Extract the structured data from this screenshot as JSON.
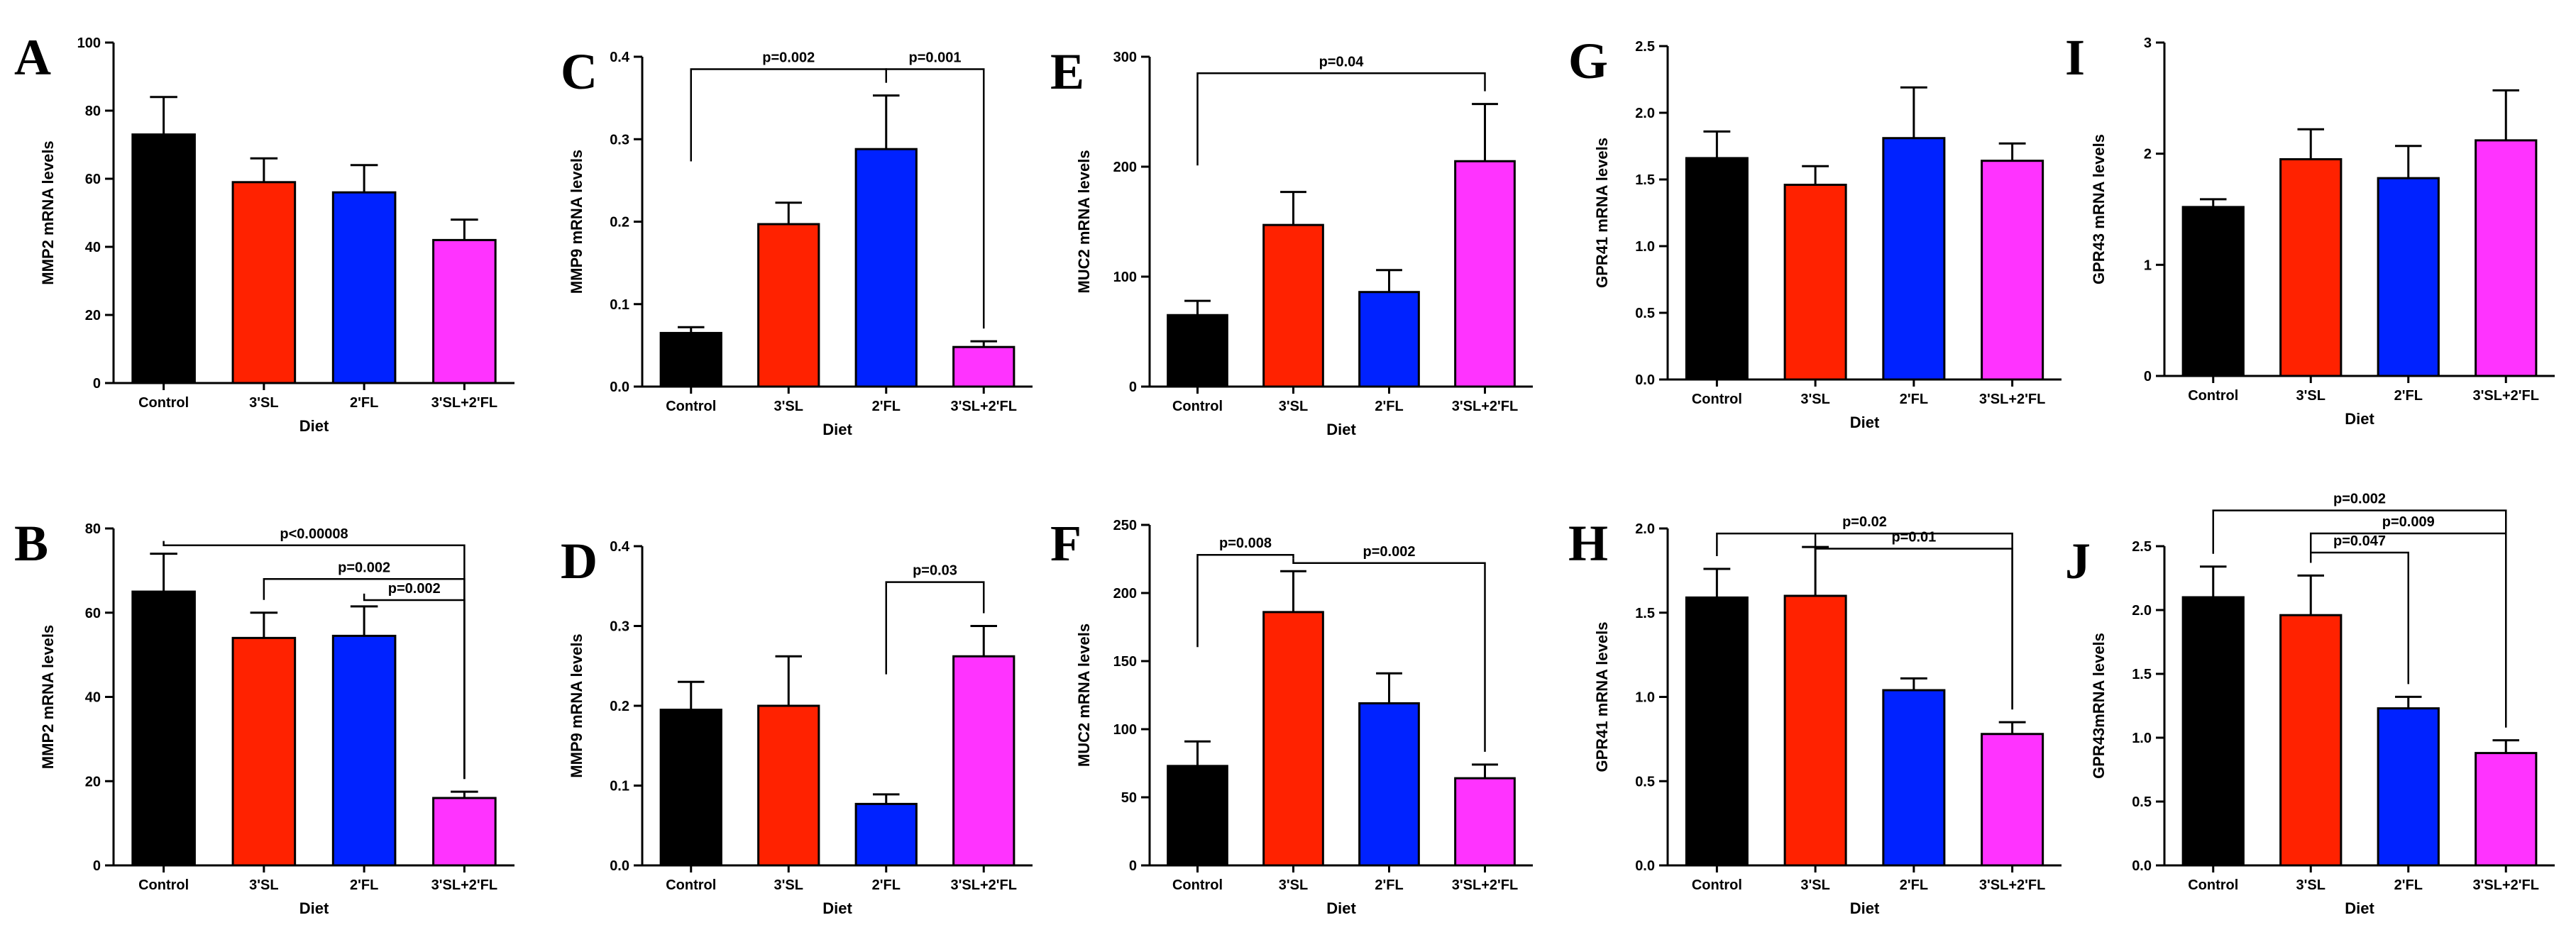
{
  "chart_data": [
    {
      "id": "A",
      "type": "bar",
      "title": "",
      "categories": [
        "Control",
        "3'SL",
        "2'FL",
        "3'SL+2'FL"
      ],
      "values": [
        73,
        59,
        56,
        42
      ],
      "errors": [
        11,
        7,
        8,
        6
      ],
      "colors": [
        "#000000",
        "#ff2200",
        "#0022ff",
        "#ff33ff"
      ],
      "ylabel": "MMP2 mRNA levels",
      "xlabel": "Diet",
      "ylim": [
        0,
        100
      ],
      "yticks": [
        "0",
        "20",
        "40",
        "60",
        "80",
        "100"
      ],
      "brackets": []
    },
    {
      "id": "B",
      "type": "bar",
      "title": "",
      "categories": [
        "Control",
        "3'SL",
        "2'FL",
        "3'SL+2'FL"
      ],
      "values": [
        65,
        54,
        54.5,
        16
      ],
      "errors": [
        9,
        6,
        7,
        1.5
      ],
      "colors": [
        "#000000",
        "#ff2200",
        "#0022ff",
        "#ff33ff"
      ],
      "ylabel": "MMP2 mRNA levels",
      "xlabel": "Diet",
      "ylim": [
        0,
        80
      ],
      "yticks": [
        "0",
        "20",
        "40",
        "60",
        "80"
      ],
      "brackets": [
        {
          "from": 0,
          "to": 3,
          "level": 76,
          "label": "p<0.00008"
        },
        {
          "from": 1,
          "to": 3,
          "level": 68,
          "label": "p=0.002"
        },
        {
          "from": 2,
          "to": 3,
          "level": 63,
          "label": "p=0.002"
        }
      ]
    },
    {
      "id": "C",
      "type": "bar",
      "title": "",
      "categories": [
        "Control",
        "3'SL",
        "2'FL",
        "3'SL+2'FL"
      ],
      "values": [
        0.065,
        0.197,
        0.288,
        0.048
      ],
      "errors": [
        0.007,
        0.026,
        0.065,
        0.007
      ],
      "colors": [
        "#000000",
        "#ff2200",
        "#0022ff",
        "#ff33ff"
      ],
      "ylabel": "MMP9 mRNA levels",
      "xlabel": "Diet",
      "ylim": [
        0,
        0.4
      ],
      "yticks": [
        "0.0",
        "0.1",
        "0.2",
        "0.3",
        "0.4"
      ],
      "brackets": [
        {
          "from": 0,
          "to": 2,
          "level": 0.385,
          "label": "p=0.002"
        },
        {
          "from": 2,
          "to": 3,
          "level": 0.385,
          "label": "p=0.001"
        }
      ]
    },
    {
      "id": "D",
      "type": "bar",
      "title": "",
      "categories": [
        "Control",
        "3'SL",
        "2'FL",
        "3'SL+2'FL"
      ],
      "values": [
        0.195,
        0.2,
        0.077,
        0.262
      ],
      "errors": [
        0.035,
        0.062,
        0.012,
        0.038
      ],
      "colors": [
        "#000000",
        "#ff2200",
        "#0022ff",
        "#ff33ff"
      ],
      "ylabel": "MMP9 mRNA  levels",
      "xlabel": "Diet",
      "ylim": [
        0,
        0.4
      ],
      "yticks": [
        "0.0",
        "0.1",
        "0.2",
        "0.3",
        "0.4"
      ],
      "brackets": [
        {
          "from": 2,
          "to": 3,
          "level": 0.355,
          "label": "p=0.03"
        }
      ]
    },
    {
      "id": "E",
      "type": "bar",
      "title": "",
      "categories": [
        "Control",
        "3'SL",
        "2'FL",
        "3'SL+2'FL"
      ],
      "values": [
        65,
        147,
        86,
        205
      ],
      "errors": [
        13,
        30,
        20,
        52
      ],
      "colors": [
        "#000000",
        "#ff2200",
        "#0022ff",
        "#ff33ff"
      ],
      "ylabel": "MUC2 mRNA levels",
      "xlabel": "Diet",
      "ylim": [
        0,
        300
      ],
      "yticks": [
        "0",
        "100",
        "200",
        "300"
      ],
      "brackets": [
        {
          "from": 0,
          "to": 3,
          "level": 285,
          "label": "p=0.04"
        }
      ]
    },
    {
      "id": "F",
      "type": "bar",
      "title": "",
      "categories": [
        "Control",
        "3'SL",
        "2'FL",
        "3'SL+2'FL"
      ],
      "values": [
        73,
        186,
        119,
        64
      ],
      "errors": [
        18,
        30,
        22,
        10
      ],
      "colors": [
        "#000000",
        "#ff2200",
        "#0022ff",
        "#ff33ff"
      ],
      "ylabel": "MUC2 mRNA levels",
      "xlabel": "Diet",
      "ylim": [
        0,
        250
      ],
      "yticks": [
        "0",
        "50",
        "100",
        "150",
        "200",
        "250"
      ],
      "brackets": [
        {
          "from": 0,
          "to": 1,
          "level": 228,
          "label": "p=0.008"
        },
        {
          "from": 1,
          "to": 3,
          "level": 222,
          "label": "p=0.002"
        }
      ]
    },
    {
      "id": "G",
      "type": "bar",
      "title": "",
      "categories": [
        "Control",
        "3'SL",
        "2'FL",
        "3'SL+2'FL"
      ],
      "values": [
        1.66,
        1.46,
        1.81,
        1.64
      ],
      "errors": [
        0.2,
        0.14,
        0.38,
        0.13
      ],
      "colors": [
        "#000000",
        "#ff2200",
        "#0022ff",
        "#ff33ff"
      ],
      "ylabel": "GPR41 mRNA levels",
      "xlabel": "Diet",
      "ylim": [
        0,
        2.5
      ],
      "yticks": [
        "0.0",
        "0.5",
        "1.0",
        "1.5",
        "2.0",
        "2.5"
      ],
      "brackets": []
    },
    {
      "id": "H",
      "type": "bar",
      "title": "",
      "categories": [
        "Control",
        "3'SL",
        "2'FL",
        "3'SL+2'FL"
      ],
      "values": [
        1.59,
        1.6,
        1.04,
        0.78
      ],
      "errors": [
        0.17,
        0.29,
        0.07,
        0.07
      ],
      "colors": [
        "#000000",
        "#ff2200",
        "#0022ff",
        "#ff33ff"
      ],
      "ylabel": "GPR41 mRNA levels",
      "xlabel": "Diet",
      "ylim": [
        0,
        2.0
      ],
      "yticks": [
        "0.0",
        "0.5",
        "1.0",
        "1.5",
        "2.0"
      ],
      "brackets": [
        {
          "from": 0,
          "to": 3,
          "level": 1.97,
          "label": "p=0.02"
        },
        {
          "from": 1,
          "to": 3,
          "level": 1.88,
          "label": "p=0.01"
        }
      ]
    },
    {
      "id": "I",
      "type": "bar",
      "title": "",
      "categories": [
        "Control",
        "3'SL",
        "2'FL",
        "3'SL+2'FL"
      ],
      "values": [
        1.52,
        1.95,
        1.78,
        2.12
      ],
      "errors": [
        0.07,
        0.27,
        0.29,
        0.45
      ],
      "colors": [
        "#000000",
        "#ff2200",
        "#0022ff",
        "#ff33ff"
      ],
      "ylabel": "GPR43 mRNA levels",
      "xlabel": "Diet",
      "ylim": [
        0,
        3
      ],
      "yticks": [
        "0",
        "1",
        "2",
        "3"
      ],
      "brackets": []
    },
    {
      "id": "J",
      "type": "bar",
      "title": "",
      "categories": [
        "Control",
        "3'SL",
        "2'FL",
        "3'SL+2'FL"
      ],
      "values": [
        2.1,
        1.96,
        1.23,
        0.88
      ],
      "errors": [
        0.24,
        0.31,
        0.09,
        0.1
      ],
      "colors": [
        "#000000",
        "#ff2200",
        "#0022ff",
        "#ff33ff"
      ],
      "ylabel": "GPR43mRNA levels",
      "xlabel": "Diet",
      "ylim": [
        0,
        2.5
      ],
      "yticks": [
        "0.0",
        "0.5",
        "1.0",
        "1.5",
        "2.0",
        "2.5"
      ],
      "brackets": [
        {
          "from": 0,
          "to": 3,
          "level": 2.78,
          "label": "p=0.002"
        },
        {
          "from": 1,
          "to": 3,
          "level": 2.6,
          "label": "p=0.009"
        },
        {
          "from": 1,
          "to": 2,
          "level": 2.45,
          "label": "p=0.047"
        }
      ]
    }
  ]
}
